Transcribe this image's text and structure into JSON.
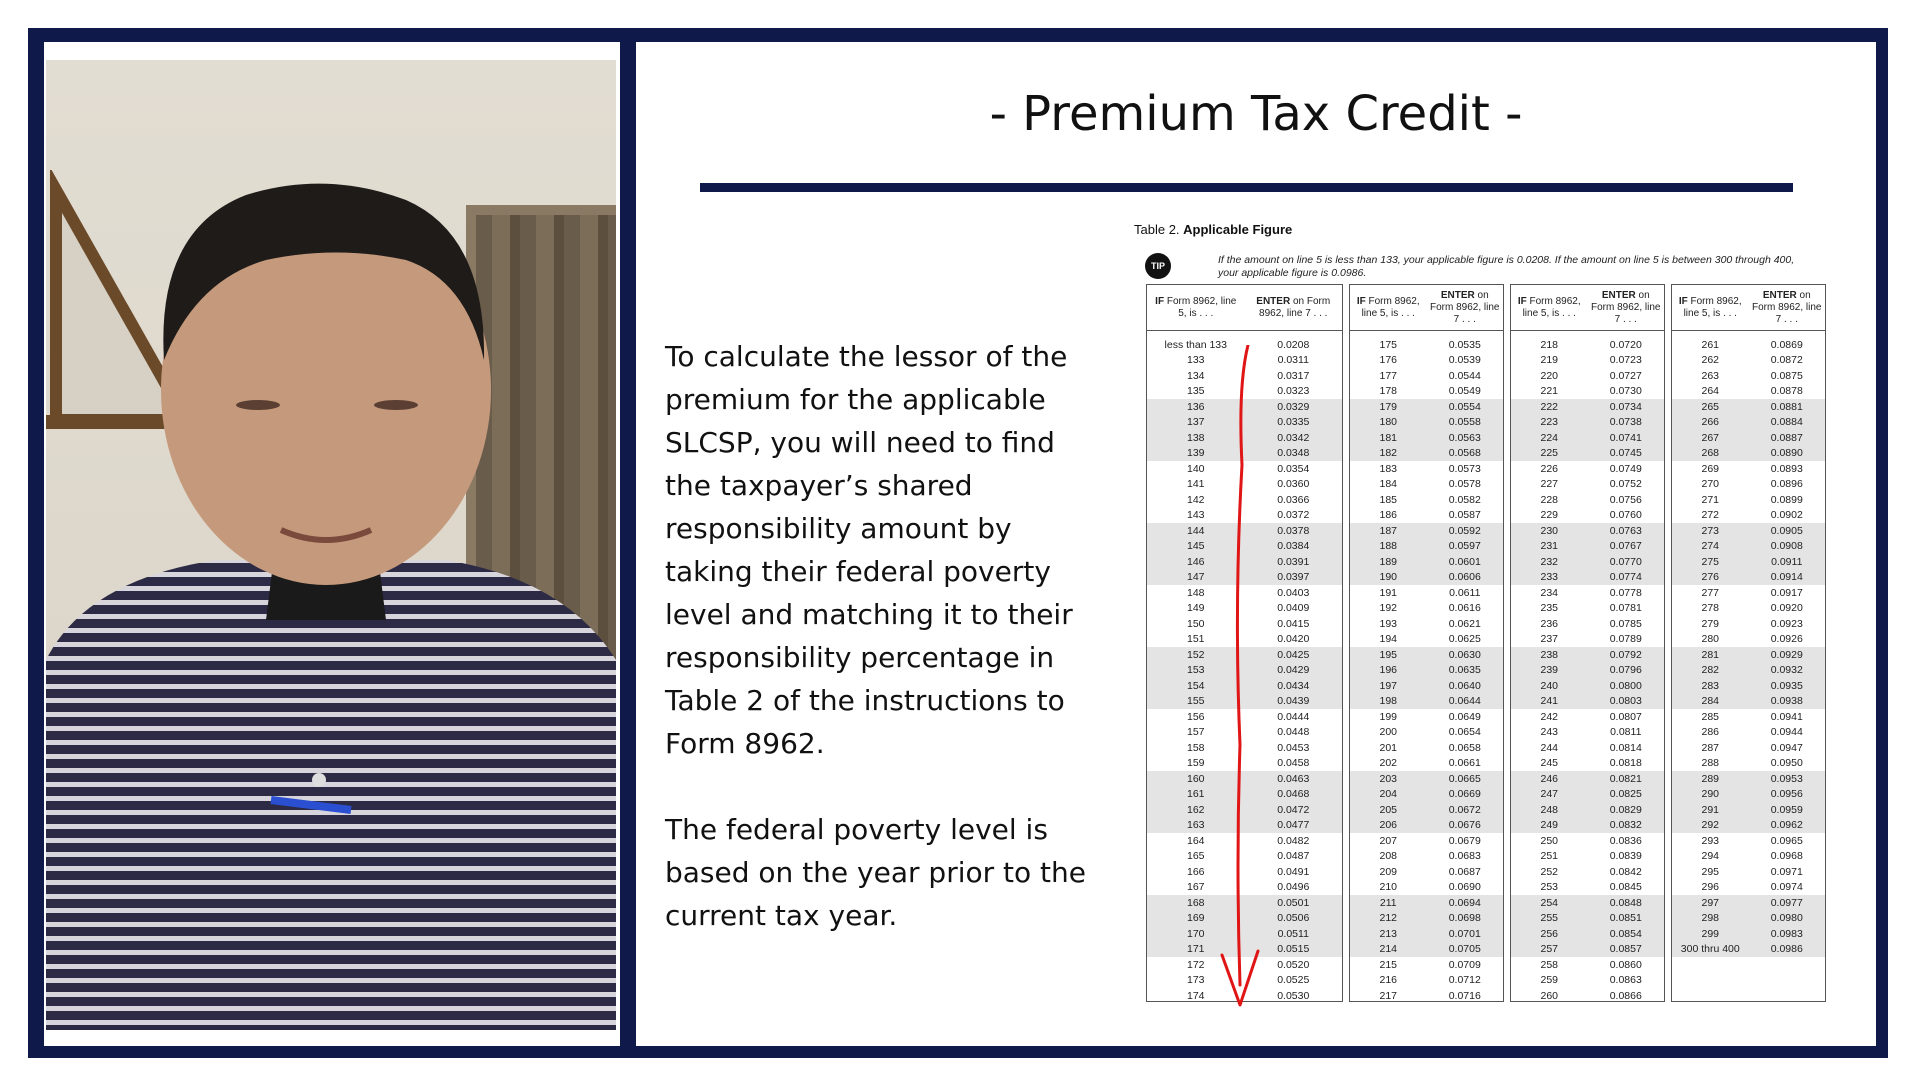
{
  "slide": {
    "title": "- Premium Tax Credit -",
    "paragraphs": [
      "To calculate the lessor of the premium for the applicable SLCSP, you will need to find the taxpayer’s shared responsibility amount by taking their federal poverty level and matching it to their responsibility percentage in Table 2 of the instructions to Form 8962.",
      "The federal poverty level is based on the year prior to the current tax year."
    ]
  },
  "table": {
    "caption_prefix": "Table 2. ",
    "caption_bold": "Applicable Figure",
    "tip_label": "TIP",
    "tip_text": "If the amount on line 5 is less than 133, your applicable figure is 0.0208. If the amount on line 5 is between 300 through 400, your applicable figure is 0.0986.",
    "head_if_bold": "IF",
    "head_if_text": " Form 8962, line 5, is . . .",
    "head_enter_bold": "ENTER",
    "head_enter_text": " on Form 8962, line 7 . . .",
    "columns": [
      {
        "rows": [
          [
            "less than 133",
            "0.0208"
          ],
          [
            "133",
            "0.0311"
          ],
          [
            "134",
            "0.0317"
          ],
          [
            "135",
            "0.0323"
          ],
          [
            "136",
            "0.0329"
          ],
          [
            "137",
            "0.0335"
          ],
          [
            "138",
            "0.0342"
          ],
          [
            "139",
            "0.0348"
          ],
          [
            "140",
            "0.0354"
          ],
          [
            "141",
            "0.0360"
          ],
          [
            "142",
            "0.0366"
          ],
          [
            "143",
            "0.0372"
          ],
          [
            "144",
            "0.0378"
          ],
          [
            "145",
            "0.0384"
          ],
          [
            "146",
            "0.0391"
          ],
          [
            "147",
            "0.0397"
          ],
          [
            "148",
            "0.0403"
          ],
          [
            "149",
            "0.0409"
          ],
          [
            "150",
            "0.0415"
          ],
          [
            "151",
            "0.0420"
          ],
          [
            "152",
            "0.0425"
          ],
          [
            "153",
            "0.0429"
          ],
          [
            "154",
            "0.0434"
          ],
          [
            "155",
            "0.0439"
          ],
          [
            "156",
            "0.0444"
          ],
          [
            "157",
            "0.0448"
          ],
          [
            "158",
            "0.0453"
          ],
          [
            "159",
            "0.0458"
          ],
          [
            "160",
            "0.0463"
          ],
          [
            "161",
            "0.0468"
          ],
          [
            "162",
            "0.0472"
          ],
          [
            "163",
            "0.0477"
          ],
          [
            "164",
            "0.0482"
          ],
          [
            "165",
            "0.0487"
          ],
          [
            "166",
            "0.0491"
          ],
          [
            "167",
            "0.0496"
          ],
          [
            "168",
            "0.0501"
          ],
          [
            "169",
            "0.0506"
          ],
          [
            "170",
            "0.0511"
          ],
          [
            "171",
            "0.0515"
          ],
          [
            "172",
            "0.0520"
          ],
          [
            "173",
            "0.0525"
          ],
          [
            "174",
            "0.0530"
          ]
        ]
      },
      {
        "rows": [
          [
            "175",
            "0.0535"
          ],
          [
            "176",
            "0.0539"
          ],
          [
            "177",
            "0.0544"
          ],
          [
            "178",
            "0.0549"
          ],
          [
            "179",
            "0.0554"
          ],
          [
            "180",
            "0.0558"
          ],
          [
            "181",
            "0.0563"
          ],
          [
            "182",
            "0.0568"
          ],
          [
            "183",
            "0.0573"
          ],
          [
            "184",
            "0.0578"
          ],
          [
            "185",
            "0.0582"
          ],
          [
            "186",
            "0.0587"
          ],
          [
            "187",
            "0.0592"
          ],
          [
            "188",
            "0.0597"
          ],
          [
            "189",
            "0.0601"
          ],
          [
            "190",
            "0.0606"
          ],
          [
            "191",
            "0.0611"
          ],
          [
            "192",
            "0.0616"
          ],
          [
            "193",
            "0.0621"
          ],
          [
            "194",
            "0.0625"
          ],
          [
            "195",
            "0.0630"
          ],
          [
            "196",
            "0.0635"
          ],
          [
            "197",
            "0.0640"
          ],
          [
            "198",
            "0.0644"
          ],
          [
            "199",
            "0.0649"
          ],
          [
            "200",
            "0.0654"
          ],
          [
            "201",
            "0.0658"
          ],
          [
            "202",
            "0.0661"
          ],
          [
            "203",
            "0.0665"
          ],
          [
            "204",
            "0.0669"
          ],
          [
            "205",
            "0.0672"
          ],
          [
            "206",
            "0.0676"
          ],
          [
            "207",
            "0.0679"
          ],
          [
            "208",
            "0.0683"
          ],
          [
            "209",
            "0.0687"
          ],
          [
            "210",
            "0.0690"
          ],
          [
            "211",
            "0.0694"
          ],
          [
            "212",
            "0.0698"
          ],
          [
            "213",
            "0.0701"
          ],
          [
            "214",
            "0.0705"
          ],
          [
            "215",
            "0.0709"
          ],
          [
            "216",
            "0.0712"
          ],
          [
            "217",
            "0.0716"
          ]
        ]
      },
      {
        "rows": [
          [
            "218",
            "0.0720"
          ],
          [
            "219",
            "0.0723"
          ],
          [
            "220",
            "0.0727"
          ],
          [
            "221",
            "0.0730"
          ],
          [
            "222",
            "0.0734"
          ],
          [
            "223",
            "0.0738"
          ],
          [
            "224",
            "0.0741"
          ],
          [
            "225",
            "0.0745"
          ],
          [
            "226",
            "0.0749"
          ],
          [
            "227",
            "0.0752"
          ],
          [
            "228",
            "0.0756"
          ],
          [
            "229",
            "0.0760"
          ],
          [
            "230",
            "0.0763"
          ],
          [
            "231",
            "0.0767"
          ],
          [
            "232",
            "0.0770"
          ],
          [
            "233",
            "0.0774"
          ],
          [
            "234",
            "0.0778"
          ],
          [
            "235",
            "0.0781"
          ],
          [
            "236",
            "0.0785"
          ],
          [
            "237",
            "0.0789"
          ],
          [
            "238",
            "0.0792"
          ],
          [
            "239",
            "0.0796"
          ],
          [
            "240",
            "0.0800"
          ],
          [
            "241",
            "0.0803"
          ],
          [
            "242",
            "0.0807"
          ],
          [
            "243",
            "0.0811"
          ],
          [
            "244",
            "0.0814"
          ],
          [
            "245",
            "0.0818"
          ],
          [
            "246",
            "0.0821"
          ],
          [
            "247",
            "0.0825"
          ],
          [
            "248",
            "0.0829"
          ],
          [
            "249",
            "0.0832"
          ],
          [
            "250",
            "0.0836"
          ],
          [
            "251",
            "0.0839"
          ],
          [
            "252",
            "0.0842"
          ],
          [
            "253",
            "0.0845"
          ],
          [
            "254",
            "0.0848"
          ],
          [
            "255",
            "0.0851"
          ],
          [
            "256",
            "0.0854"
          ],
          [
            "257",
            "0.0857"
          ],
          [
            "258",
            "0.0860"
          ],
          [
            "259",
            "0.0863"
          ],
          [
            "260",
            "0.0866"
          ]
        ]
      },
      {
        "rows": [
          [
            "261",
            "0.0869"
          ],
          [
            "262",
            "0.0872"
          ],
          [
            "263",
            "0.0875"
          ],
          [
            "264",
            "0.0878"
          ],
          [
            "265",
            "0.0881"
          ],
          [
            "266",
            "0.0884"
          ],
          [
            "267",
            "0.0887"
          ],
          [
            "268",
            "0.0890"
          ],
          [
            "269",
            "0.0893"
          ],
          [
            "270",
            "0.0896"
          ],
          [
            "271",
            "0.0899"
          ],
          [
            "272",
            "0.0902"
          ],
          [
            "273",
            "0.0905"
          ],
          [
            "274",
            "0.0908"
          ],
          [
            "275",
            "0.0911"
          ],
          [
            "276",
            "0.0914"
          ],
          [
            "277",
            "0.0917"
          ],
          [
            "278",
            "0.0920"
          ],
          [
            "279",
            "0.0923"
          ],
          [
            "280",
            "0.0926"
          ],
          [
            "281",
            "0.0929"
          ],
          [
            "282",
            "0.0932"
          ],
          [
            "283",
            "0.0935"
          ],
          [
            "284",
            "0.0938"
          ],
          [
            "285",
            "0.0941"
          ],
          [
            "286",
            "0.0944"
          ],
          [
            "287",
            "0.0947"
          ],
          [
            "288",
            "0.0950"
          ],
          [
            "289",
            "0.0953"
          ],
          [
            "290",
            "0.0956"
          ],
          [
            "291",
            "0.0959"
          ],
          [
            "292",
            "0.0962"
          ],
          [
            "293",
            "0.0965"
          ],
          [
            "294",
            "0.0968"
          ],
          [
            "295",
            "0.0971"
          ],
          [
            "296",
            "0.0974"
          ],
          [
            "297",
            "0.0977"
          ],
          [
            "298",
            "0.0980"
          ],
          [
            "299",
            "0.0983"
          ],
          [
            "300 thru 400",
            "0.0986"
          ]
        ]
      }
    ]
  },
  "colors": {
    "frame": "#0f1a4a",
    "arrow": "#e01515",
    "row_shade": "#e4e4e4"
  }
}
